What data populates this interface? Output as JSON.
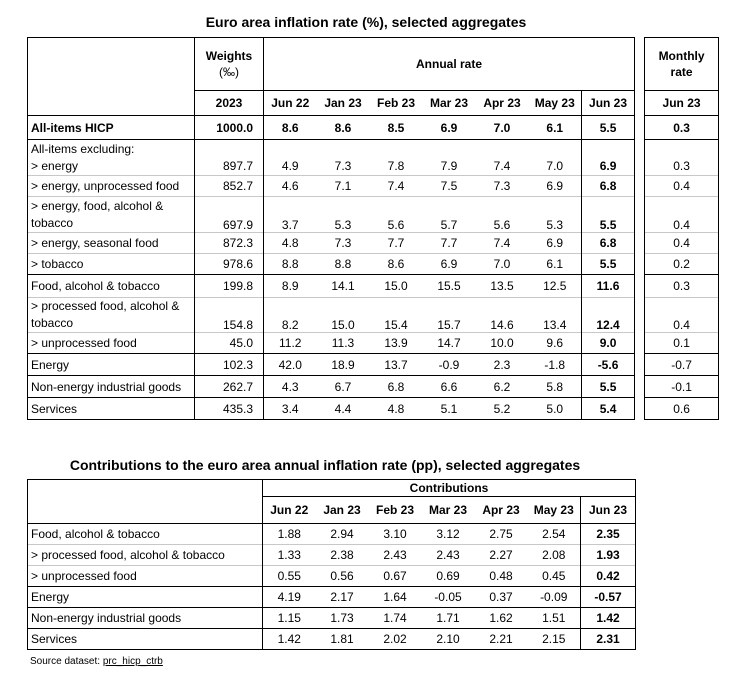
{
  "table1": {
    "title": "Euro area inflation rate (%), selected aggregates",
    "header": {
      "weights_label_line1": "Weights",
      "weights_label_line2": "(‰)",
      "annual_rate_label": "Annual rate",
      "monthly_rate_line1": "Monthly",
      "monthly_rate_line2": "rate",
      "weights_year": "2023",
      "columns": [
        "Jun 22",
        "Jan 23",
        "Feb 23",
        "Mar 23",
        "Apr 23",
        "May 23",
        "Jun 23"
      ],
      "monthly_column": "Jun 23"
    },
    "hicp": {
      "label": "All-items HICP",
      "weight": "1000.0",
      "values": [
        "8.6",
        "8.6",
        "8.5",
        "6.9",
        "7.0",
        "6.1",
        "5.5"
      ],
      "monthly": "0.3"
    },
    "excluding_label": "All-items excluding:",
    "rows": [
      {
        "label": "> energy",
        "weight": "897.7",
        "values": [
          "4.9",
          "7.3",
          "7.8",
          "7.9",
          "7.4",
          "7.0",
          "6.9"
        ],
        "monthly": "0.3"
      },
      {
        "label": "> energy, unprocessed food",
        "weight": "852.7",
        "values": [
          "4.6",
          "7.1",
          "7.4",
          "7.5",
          "7.3",
          "6.9",
          "6.8"
        ],
        "monthly": "0.4"
      },
      {
        "label_line1": "> energy, food, alcohol &",
        "label_line2": "tobacco",
        "weight": "697.9",
        "values": [
          "3.7",
          "5.3",
          "5.6",
          "5.7",
          "5.6",
          "5.3",
          "5.5"
        ],
        "monthly": "0.4"
      },
      {
        "label": "> energy, seasonal food",
        "weight": "872.3",
        "values": [
          "4.8",
          "7.3",
          "7.7",
          "7.7",
          "7.4",
          "6.9",
          "6.8"
        ],
        "monthly": "0.4"
      },
      {
        "label": "> tobacco",
        "weight": "978.6",
        "values": [
          "8.8",
          "8.8",
          "8.6",
          "6.9",
          "7.0",
          "6.1",
          "5.5"
        ],
        "monthly": "0.2"
      },
      {
        "label": "Food, alcohol & tobacco",
        "weight": "199.8",
        "values": [
          "8.9",
          "14.1",
          "15.0",
          "15.5",
          "13.5",
          "12.5",
          "11.6"
        ],
        "monthly": "0.3"
      },
      {
        "label_line1": "> processed food, alcohol &",
        "label_line2": "tobacco",
        "weight": "154.8",
        "values": [
          "8.2",
          "15.0",
          "15.4",
          "15.7",
          "14.6",
          "13.4",
          "12.4"
        ],
        "monthly": "0.4"
      },
      {
        "label": "> unprocessed food",
        "weight": "45.0",
        "values": [
          "11.2",
          "11.3",
          "13.9",
          "14.7",
          "10.0",
          "9.6",
          "9.0"
        ],
        "monthly": "0.1"
      },
      {
        "label": "Energy",
        "weight": "102.3",
        "values": [
          "42.0",
          "18.9",
          "13.7",
          "-0.9",
          "2.3",
          "-1.8",
          "-5.6"
        ],
        "monthly": "-0.7"
      },
      {
        "label": "Non-energy industrial goods",
        "weight": "262.7",
        "values": [
          "4.3",
          "6.7",
          "6.8",
          "6.6",
          "6.2",
          "5.8",
          "5.5"
        ],
        "monthly": "-0.1"
      },
      {
        "label": "Services",
        "weight": "435.3",
        "values": [
          "3.4",
          "4.4",
          "4.8",
          "5.1",
          "5.2",
          "5.0",
          "5.4"
        ],
        "monthly": "0.6"
      }
    ]
  },
  "table2": {
    "title": "Contributions to the euro area annual inflation rate (pp), selected aggregates",
    "contributions_label": "Contributions",
    "columns": [
      "Jun 22",
      "Jan 23",
      "Feb 23",
      "Mar 23",
      "Apr 23",
      "May 23",
      "Jun 23"
    ],
    "rows": [
      {
        "label": "Food, alcohol & tobacco",
        "values": [
          "1.88",
          "2.94",
          "3.10",
          "3.12",
          "2.75",
          "2.54",
          "2.35"
        ]
      },
      {
        "label": "> processed food, alcohol & tobacco",
        "values": [
          "1.33",
          "2.38",
          "2.43",
          "2.43",
          "2.27",
          "2.08",
          "1.93"
        ]
      },
      {
        "label": "> unprocessed food",
        "values": [
          "0.55",
          "0.56",
          "0.67",
          "0.69",
          "0.48",
          "0.45",
          "0.42"
        ]
      },
      {
        "label": "Energy",
        "values": [
          "4.19",
          "2.17",
          "1.64",
          "-0.05",
          "0.37",
          "-0.09",
          "-0.57"
        ]
      },
      {
        "label": "Non-energy industrial goods",
        "values": [
          "1.15",
          "1.73",
          "1.74",
          "1.71",
          "1.62",
          "1.51",
          "1.42"
        ]
      },
      {
        "label": "Services",
        "values": [
          "1.42",
          "1.81",
          "2.02",
          "2.10",
          "2.21",
          "2.15",
          "2.31"
        ]
      }
    ]
  },
  "source": {
    "prefix": "Source dataset: ",
    "link": "prc_hicp_ctrb"
  }
}
